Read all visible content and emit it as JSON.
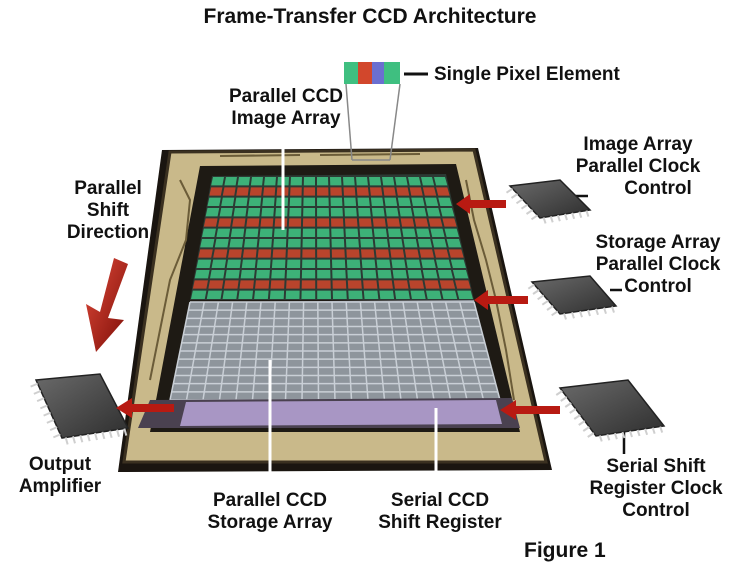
{
  "title": "Frame-Transfer CCD Architecture",
  "figure_label": "Figure 1",
  "labels": {
    "single_pixel": "Single Pixel Element",
    "image_array": [
      "Parallel CCD",
      "Image Array"
    ],
    "parallel_shift": [
      "Parallel",
      "Shift",
      "Direction"
    ],
    "image_clock": [
      "Image Array",
      "Parallel Clock",
      "Control"
    ],
    "storage_clock": [
      "Storage Array",
      "Parallel Clock",
      "Control"
    ],
    "serial_clock": [
      "Serial Shift",
      "Register Clock",
      "Control"
    ],
    "output_amp": [
      "Output",
      "Amplifier"
    ],
    "storage_array": [
      "Parallel CCD",
      "Storage Array"
    ],
    "shift_register": [
      "Serial CCD",
      "Shift Register"
    ]
  },
  "colors": {
    "board": "#c9b98a",
    "board_dark": "#2a2418",
    "pixel_green": "#3fbf80",
    "pixel_red": "#d2472c",
    "storage_grid": "#c9cfd6",
    "serial_purple": "#b8a6d8",
    "arrow_red": "#b81a12",
    "chip": "#4a4a4a"
  }
}
